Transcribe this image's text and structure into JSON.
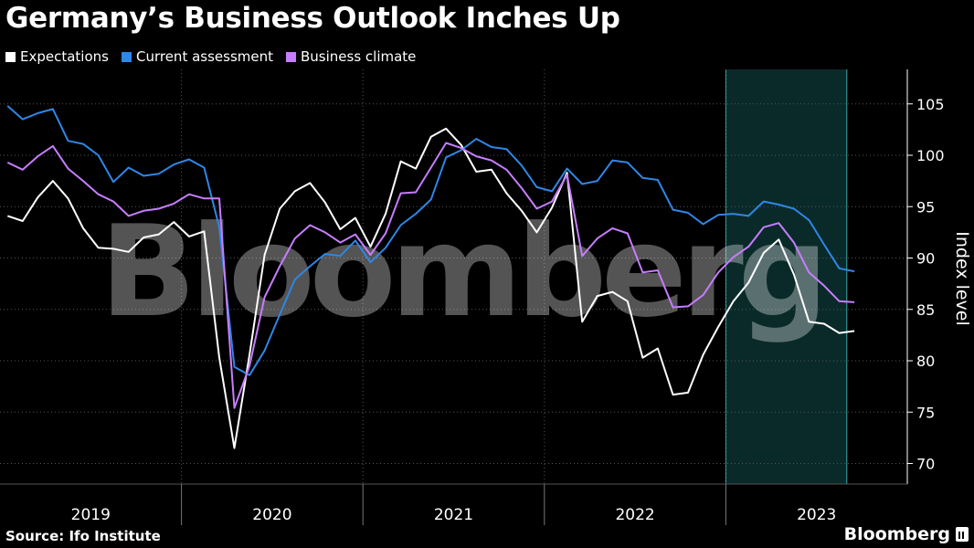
{
  "header": {
    "title": "Germany’s Business Outlook Inches Up"
  },
  "footer": {
    "source": "Source: Ifo Institute",
    "brand": "Bloomberg"
  },
  "watermark": "Bloomberg",
  "colors": {
    "expectations": "#ffffff",
    "current": "#2f86e6",
    "climate": "#c77dff",
    "shade": "#0a2a2a",
    "shade_border": "#3fa9a9",
    "grid": "#555555",
    "background": "#000000"
  },
  "chart_data": {
    "type": "line",
    "ylabel": "Index level",
    "ylim": [
      68,
      108
    ],
    "yticks": [
      70,
      75,
      80,
      85,
      90,
      95,
      100,
      105
    ],
    "grid": true,
    "x_start": "2019-01",
    "x_end": "2023-12",
    "x_unit": "month",
    "years": [
      "2019",
      "2020",
      "2021",
      "2022",
      "2023"
    ],
    "shaded_region": {
      "from": "2023-01",
      "to": "2023-08"
    },
    "legend": [
      "Expectations",
      "Current assessment",
      "Business climate"
    ],
    "series": [
      {
        "name": "Expectations",
        "color": "#ffffff",
        "values": [
          94.1,
          93.6,
          95.9,
          97.5,
          95.8,
          92.9,
          91.0,
          90.9,
          90.6,
          92.0,
          92.3,
          93.5,
          92.1,
          92.6,
          80.3,
          71.5,
          80.6,
          90.3,
          94.8,
          96.5,
          97.3,
          95.4,
          92.8,
          93.9,
          91.1,
          94.3,
          99.4,
          98.7,
          101.8,
          102.6,
          101.0,
          98.4,
          98.6,
          96.3,
          94.6,
          92.5,
          94.9,
          98.3,
          83.8,
          86.3,
          86.7,
          85.8,
          80.3,
          81.2,
          76.7,
          76.9,
          80.6,
          83.3,
          85.8,
          87.6,
          90.5,
          91.8,
          88.4,
          83.8,
          83.6,
          82.7,
          82.9
        ]
      },
      {
        "name": "Current assessment",
        "color": "#2f86e6",
        "values": [
          104.8,
          103.5,
          104.1,
          104.5,
          101.4,
          101.1,
          100.0,
          97.4,
          98.8,
          98.0,
          98.2,
          99.1,
          99.6,
          98.8,
          93.0,
          79.4,
          78.6,
          81.0,
          84.5,
          87.9,
          89.2,
          90.4,
          90.2,
          91.7,
          89.6,
          91.0,
          93.2,
          94.3,
          95.7,
          99.8,
          100.5,
          101.6,
          100.8,
          100.6,
          99.0,
          96.9,
          96.5,
          98.7,
          97.2,
          97.5,
          99.5,
          99.3,
          97.8,
          97.6,
          94.7,
          94.4,
          93.3,
          94.2,
          94.3,
          94.1,
          95.5,
          95.2,
          94.8,
          93.7,
          91.3,
          89.0,
          88.7
        ]
      },
      {
        "name": "Business climate",
        "color": "#c77dff",
        "values": [
          99.3,
          98.6,
          99.9,
          100.9,
          98.7,
          97.5,
          96.2,
          95.5,
          94.1,
          94.6,
          94.8,
          95.3,
          96.2,
          95.8,
          95.8,
          75.4,
          79.5,
          86.2,
          89.2,
          91.9,
          93.2,
          92.5,
          91.5,
          92.3,
          90.3,
          92.4,
          96.3,
          96.4,
          98.8,
          101.2,
          100.7,
          99.9,
          99.5,
          98.6,
          96.8,
          94.8,
          95.5,
          98.1,
          90.2,
          91.9,
          92.9,
          92.4,
          88.6,
          88.8,
          85.2,
          85.3,
          86.4,
          88.6,
          90.1,
          91.1,
          93.0,
          93.4,
          91.5,
          88.6,
          87.3,
          85.8,
          85.7
        ]
      }
    ]
  }
}
